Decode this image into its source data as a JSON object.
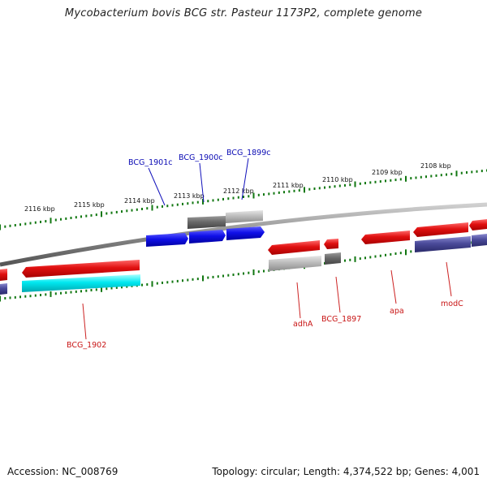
{
  "title": "Mycobacterium bovis BCG str. Pasteur 1173P2, complete genome",
  "footer": {
    "accession": "Accession: NC_008769",
    "summary": "Topology: circular; Length: 4,374,522 bp; Genes: 4,001"
  },
  "scale": {
    "ticks": [
      {
        "label": "2116 kbp"
      },
      {
        "label": "2115 kbp"
      },
      {
        "label": "2114 kbp"
      },
      {
        "label": "2113 kbp"
      },
      {
        "label": "2112 kbp"
      },
      {
        "label": "2111 kbp"
      },
      {
        "label": "2110 kbp"
      },
      {
        "label": "2109 kbp"
      },
      {
        "label": "2108 kbp"
      }
    ]
  },
  "genes": {
    "bcg_1901c": {
      "label": "BCG_1901c"
    },
    "bcg_1900c": {
      "label": "BCG_1900c"
    },
    "bcg_1899c": {
      "label": "BCG_1899c"
    },
    "bcg_1902": {
      "label": "BCG_1902"
    },
    "adha": {
      "label": "adhA"
    },
    "bcg_1897": {
      "label": "BCG_1897"
    },
    "apa": {
      "label": "apa"
    },
    "modc": {
      "label": "modC"
    }
  },
  "colors": {
    "forward_cds": "#dd1111",
    "reverse_cds": "#1111dd",
    "gray_feature": "#6a6a6a",
    "light_gray_feature": "#b8b8b8",
    "cyan_feature": "#00e5ee",
    "purple_feature": "#4a4a9a",
    "tick_color": "#117711",
    "backbone": "#8a8a8a",
    "label_blue": "#0a0ab4",
    "label_red": "#c81414"
  }
}
